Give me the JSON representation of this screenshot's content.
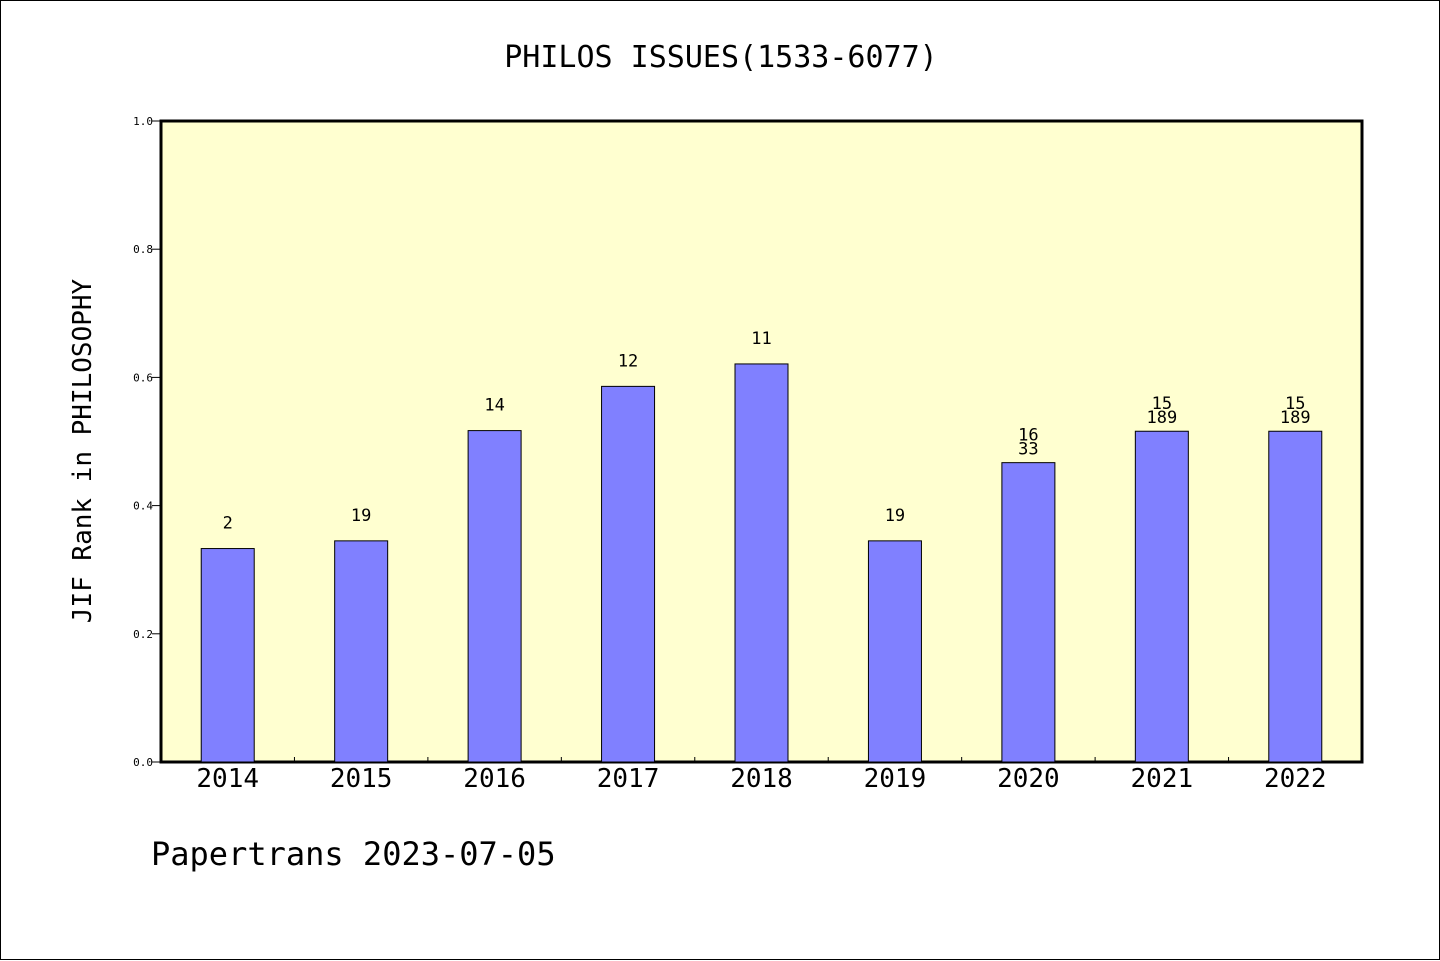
{
  "chart_data": {
    "type": "bar",
    "title": "PHILOS ISSUES(1533-6077)",
    "xlabel": "",
    "ylabel": "JIF Rank in PHILOSOPHY",
    "ylim": [
      0,
      1.0
    ],
    "yticks": [
      "0.0",
      "0.2",
      "0.4",
      "0.6",
      "0.8",
      "1.0"
    ],
    "grid": false,
    "legend": "none",
    "categories": [
      "2014",
      "2015",
      "2016",
      "2017",
      "2018",
      "2019",
      "2020",
      "2021",
      "2022"
    ],
    "series": [
      {
        "values": [
          0.333,
          0.345,
          0.517,
          0.586,
          0.621,
          0.345,
          0.467,
          0.516,
          0.516
        ],
        "labels": [
          [
            "2"
          ],
          [
            "19"
          ],
          [
            "14"
          ],
          [
            "12"
          ],
          [
            "11"
          ],
          [
            "19"
          ],
          [
            "16",
            "33"
          ],
          [
            "15",
            "189"
          ],
          [
            "15",
            "189"
          ]
        ]
      }
    ],
    "footer": "Papertrans 2023-07-05",
    "colors": {
      "bar": "#8080ff",
      "plot_background": "#ffffd0",
      "border": "#000000"
    }
  }
}
